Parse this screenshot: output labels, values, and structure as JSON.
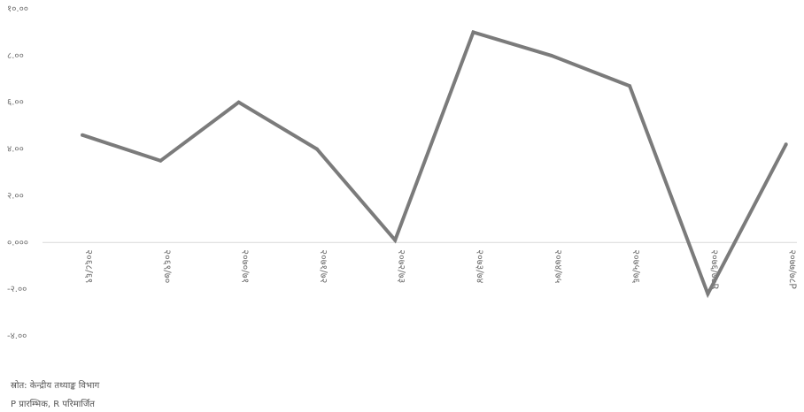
{
  "chart_data": {
    "type": "line",
    "title": "",
    "xlabel": "",
    "ylabel": "",
    "categories": [
      "२०६८/६९",
      "२०६९/७०",
      "२०७०/७१",
      "२०७१/७२",
      "२०७२/७३",
      "२०७३/७४",
      "२०७४/७५",
      "२०७५/७६",
      "२०७६/७७R",
      "२०७७/७८P"
    ],
    "series": [
      {
        "values": [
          4.6,
          3.5,
          6.0,
          4.0,
          0.1,
          9.0,
          8.0,
          6.7,
          -2.2,
          4.2
        ]
      }
    ],
    "ylim": [
      -4,
      10
    ],
    "y_ticks": [
      10,
      8,
      6,
      4,
      2,
      0,
      -2,
      -4
    ],
    "y_tick_labels": [
      "१०.००",
      "८.००",
      "६.००",
      "४.००",
      "२.००",
      "०.०००",
      "-२.००",
      "-४.००"
    ],
    "grid": false,
    "line_color": "#7b7b7b",
    "zero_line_color": "#d9d9d9"
  },
  "notes": {
    "source": "स्रोत: केन्द्रीय तथ्याङ्क विभाग",
    "legend": "P प्रारम्भिक, R परिमार्जित"
  }
}
